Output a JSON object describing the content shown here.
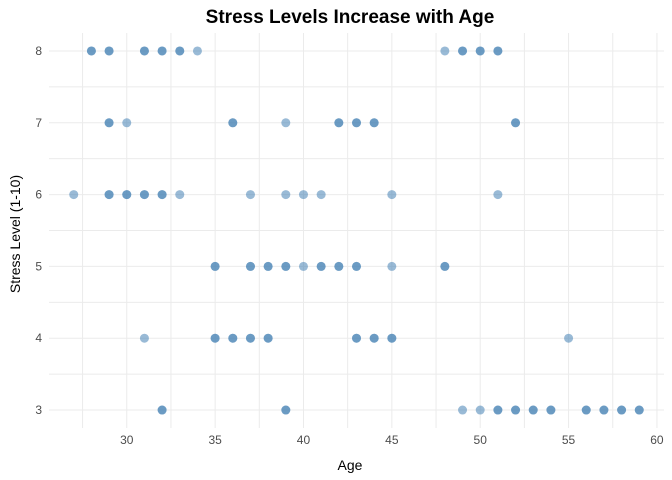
{
  "chart_data": {
    "type": "scatter",
    "title": "Stress Levels Increase with Age",
    "xlabel": "Age",
    "ylabel": "Stress Level (1-10)",
    "xlim": [
      25.6,
      60.4
    ],
    "ylim": [
      2.75,
      8.25
    ],
    "x_ticks": [
      30,
      35,
      40,
      45,
      50,
      55,
      60
    ],
    "y_ticks": [
      3,
      4,
      5,
      6,
      7,
      8
    ],
    "grid": true,
    "legend": "none",
    "point_color": "#4682b4",
    "point_opacity": 0.55,
    "points": [
      {
        "x": 28,
        "y": 8
      },
      {
        "x": 28,
        "y": 8
      },
      {
        "x": 29,
        "y": 8
      },
      {
        "x": 29,
        "y": 8
      },
      {
        "x": 31,
        "y": 8
      },
      {
        "x": 31,
        "y": 8
      },
      {
        "x": 32,
        "y": 8
      },
      {
        "x": 32,
        "y": 8
      },
      {
        "x": 33,
        "y": 8
      },
      {
        "x": 33,
        "y": 8
      },
      {
        "x": 34,
        "y": 8
      },
      {
        "x": 48,
        "y": 8
      },
      {
        "x": 49,
        "y": 8
      },
      {
        "x": 49,
        "y": 8
      },
      {
        "x": 50,
        "y": 8
      },
      {
        "x": 50,
        "y": 8
      },
      {
        "x": 51,
        "y": 8
      },
      {
        "x": 51,
        "y": 8
      },
      {
        "x": 29,
        "y": 7
      },
      {
        "x": 29,
        "y": 7
      },
      {
        "x": 30,
        "y": 7
      },
      {
        "x": 36,
        "y": 7
      },
      {
        "x": 36,
        "y": 7
      },
      {
        "x": 39,
        "y": 7
      },
      {
        "x": 42,
        "y": 7
      },
      {
        "x": 42,
        "y": 7
      },
      {
        "x": 43,
        "y": 7
      },
      {
        "x": 43,
        "y": 7
      },
      {
        "x": 44,
        "y": 7
      },
      {
        "x": 44,
        "y": 7
      },
      {
        "x": 52,
        "y": 7
      },
      {
        "x": 52,
        "y": 7
      },
      {
        "x": 27,
        "y": 6
      },
      {
        "x": 29,
        "y": 6
      },
      {
        "x": 29,
        "y": 6
      },
      {
        "x": 30,
        "y": 6
      },
      {
        "x": 30,
        "y": 6
      },
      {
        "x": 31,
        "y": 6
      },
      {
        "x": 31,
        "y": 6
      },
      {
        "x": 32,
        "y": 6
      },
      {
        "x": 32,
        "y": 6
      },
      {
        "x": 33,
        "y": 6
      },
      {
        "x": 37,
        "y": 6
      },
      {
        "x": 39,
        "y": 6
      },
      {
        "x": 40,
        "y": 6
      },
      {
        "x": 41,
        "y": 6
      },
      {
        "x": 45,
        "y": 6
      },
      {
        "x": 51,
        "y": 6
      },
      {
        "x": 35,
        "y": 5
      },
      {
        "x": 35,
        "y": 5
      },
      {
        "x": 37,
        "y": 5
      },
      {
        "x": 37,
        "y": 5
      },
      {
        "x": 38,
        "y": 5
      },
      {
        "x": 38,
        "y": 5
      },
      {
        "x": 39,
        "y": 5
      },
      {
        "x": 39,
        "y": 5
      },
      {
        "x": 40,
        "y": 5
      },
      {
        "x": 41,
        "y": 5
      },
      {
        "x": 41,
        "y": 5
      },
      {
        "x": 42,
        "y": 5
      },
      {
        "x": 42,
        "y": 5
      },
      {
        "x": 43,
        "y": 5
      },
      {
        "x": 43,
        "y": 5
      },
      {
        "x": 45,
        "y": 5
      },
      {
        "x": 48,
        "y": 5
      },
      {
        "x": 48,
        "y": 5
      },
      {
        "x": 31,
        "y": 4
      },
      {
        "x": 35,
        "y": 4
      },
      {
        "x": 35,
        "y": 4
      },
      {
        "x": 36,
        "y": 4
      },
      {
        "x": 36,
        "y": 4
      },
      {
        "x": 37,
        "y": 4
      },
      {
        "x": 37,
        "y": 4
      },
      {
        "x": 38,
        "y": 4
      },
      {
        "x": 38,
        "y": 4
      },
      {
        "x": 43,
        "y": 4
      },
      {
        "x": 43,
        "y": 4
      },
      {
        "x": 44,
        "y": 4
      },
      {
        "x": 44,
        "y": 4
      },
      {
        "x": 45,
        "y": 4
      },
      {
        "x": 45,
        "y": 4
      },
      {
        "x": 55,
        "y": 4
      },
      {
        "x": 32,
        "y": 3
      },
      {
        "x": 32,
        "y": 3
      },
      {
        "x": 39,
        "y": 3
      },
      {
        "x": 39,
        "y": 3
      },
      {
        "x": 49,
        "y": 3
      },
      {
        "x": 50,
        "y": 3
      },
      {
        "x": 51,
        "y": 3
      },
      {
        "x": 51,
        "y": 3
      },
      {
        "x": 52,
        "y": 3
      },
      {
        "x": 52,
        "y": 3
      },
      {
        "x": 53,
        "y": 3
      },
      {
        "x": 53,
        "y": 3
      },
      {
        "x": 54,
        "y": 3
      },
      {
        "x": 54,
        "y": 3
      },
      {
        "x": 56,
        "y": 3
      },
      {
        "x": 56,
        "y": 3
      },
      {
        "x": 57,
        "y": 3
      },
      {
        "x": 57,
        "y": 3
      },
      {
        "x": 58,
        "y": 3
      },
      {
        "x": 58,
        "y": 3
      },
      {
        "x": 59,
        "y": 3
      },
      {
        "x": 59,
        "y": 3
      }
    ]
  }
}
